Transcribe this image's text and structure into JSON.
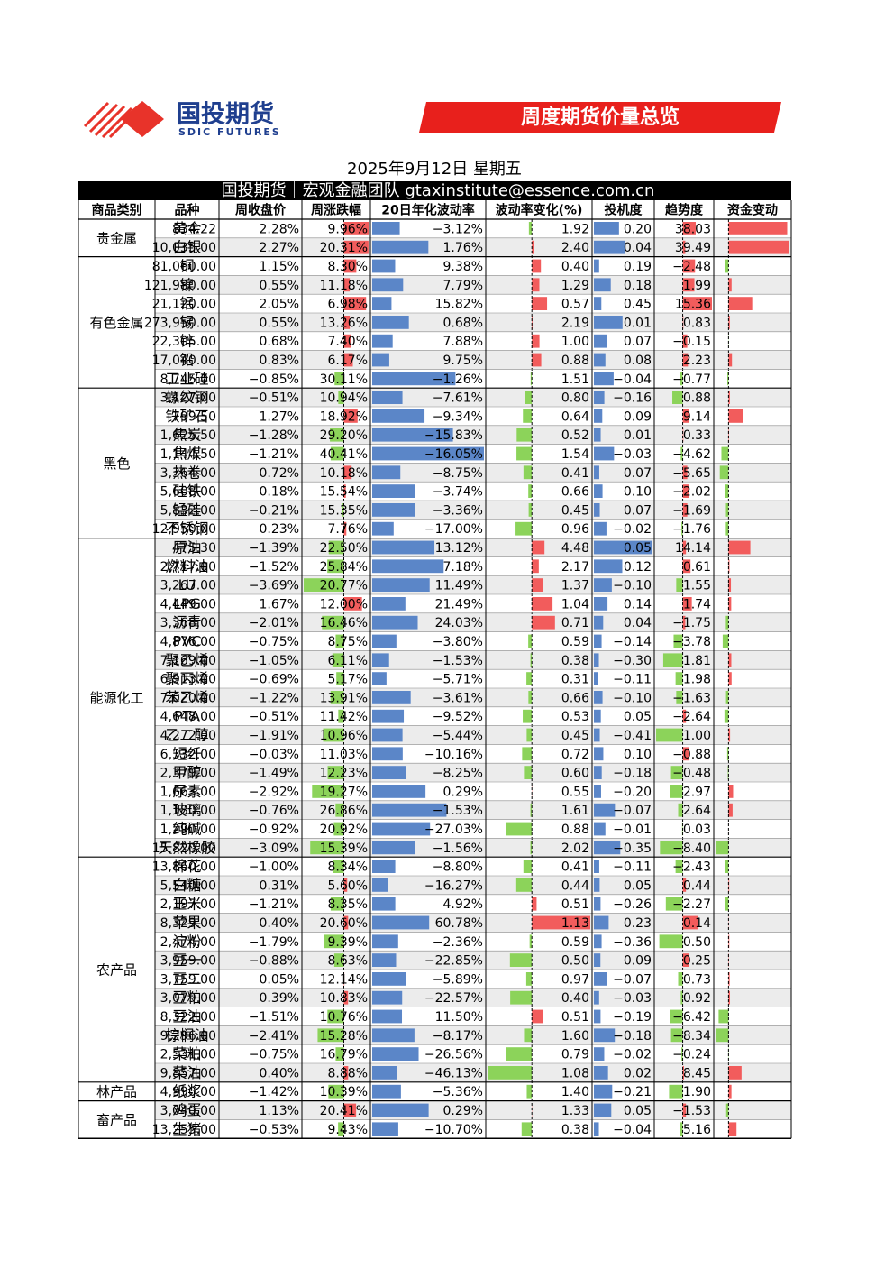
{
  "header": {
    "logo_cn": "国投期货",
    "logo_en": "SDIC FUTURES",
    "banner": "周度期货价量总览",
    "date": "2025年9月12日 星期五",
    "subtitle": "国投期货｜宏观金融团队 gtaxinstitute@essence.com.cn"
  },
  "table": {
    "columns": [
      "商品类别",
      "品种",
      "周收盘价",
      "周涨跌幅",
      "20日年化波动率",
      "波动率变化(%)",
      "投机度",
      "趋势度",
      "资金变动"
    ],
    "groups": [
      {
        "name": "贵金属",
        "rows": [
          [
            "黄金",
            "834.22",
            "2.28%",
            "9.96%",
            "−3.12%",
            "1.92",
            "0.20",
            "38.03"
          ],
          [
            "白银",
            "10,035.00",
            "2.27%",
            "20.31%",
            "1.76%",
            "2.40",
            "0.04",
            "39.49"
          ]
        ]
      },
      {
        "name": "有色金属",
        "rows": [
          [
            "铜",
            "81,060.00",
            "1.15%",
            "8.30%",
            "9.38%",
            "0.40",
            "0.19",
            "−2.48"
          ],
          [
            "镍",
            "121,980.00",
            "0.55%",
            "11.18%",
            "7.79%",
            "1.29",
            "0.18",
            "1.99"
          ],
          [
            "铝",
            "21,120.00",
            "2.05%",
            "6.98%",
            "15.82%",
            "0.57",
            "0.45",
            "15.36"
          ],
          [
            "锡",
            "273,950.00",
            "0.55%",
            "13.26%",
            "0.68%",
            "2.19",
            "0.01",
            "0.83"
          ],
          [
            "锌",
            "22,305.00",
            "0.68%",
            "7.40%",
            "7.88%",
            "1.00",
            "0.07",
            "−0.15"
          ],
          [
            "铅",
            "17,040.00",
            "0.83%",
            "6.17%",
            "9.75%",
            "0.88",
            "0.08",
            "2.23"
          ],
          [
            "工业硅",
            "8,745.00",
            "−0.85%",
            "30.11%",
            "−1.26%",
            "1.51",
            "−0.04",
            "−0.77"
          ]
        ]
      },
      {
        "name": "黑色",
        "rows": [
          [
            "螺纹钢",
            "3,127.00",
            "−0.51%",
            "10.94%",
            "−7.61%",
            "0.80",
            "−0.16",
            "0.88"
          ],
          [
            "铁矿石",
            "799.50",
            "1.27%",
            "18.92%",
            "−9.34%",
            "0.64",
            "0.09",
            "9.14"
          ],
          [
            "焦炭",
            "1,625.50",
            "−1.28%",
            "29.20%",
            "−15.83%",
            "0.52",
            "0.01",
            "0.33"
          ],
          [
            "焦煤",
            "1,144.50",
            "−1.21%",
            "40.41%",
            "−16.05%",
            "1.54",
            "−0.03",
            "−4.62"
          ],
          [
            "热卷",
            "3,364.00",
            "0.72%",
            "10.18%",
            "−8.75%",
            "0.41",
            "0.07",
            "−5.65"
          ],
          [
            "硅铁",
            "5,608.00",
            "0.18%",
            "15.54%",
            "−3.74%",
            "0.66",
            "0.10",
            "−2.02"
          ],
          [
            "锰硅",
            "5,832.00",
            "−0.21%",
            "15.35%",
            "−3.36%",
            "0.45",
            "0.07",
            "−1.69"
          ],
          [
            "不锈钢",
            "12,950.00",
            "0.23%",
            "7.76%",
            "−17.00%",
            "0.96",
            "−0.02",
            "−1.76"
          ]
        ]
      },
      {
        "name": "能源化工",
        "rows": [
          [
            "原油",
            "475.30",
            "−1.39%",
            "22.50%",
            "13.12%",
            "4.48",
            "0.05",
            "14.14"
          ],
          [
            "燃料油",
            "2,717.00",
            "−1.52%",
            "25.84%",
            "7.18%",
            "2.17",
            "0.12",
            "0.61"
          ],
          [
            "LU",
            "3,267.00",
            "−3.69%",
            "20.77%",
            "11.49%",
            "1.37",
            "−0.10",
            "1.55"
          ],
          [
            "LPG",
            "4,449.00",
            "1.67%",
            "12.00%",
            "21.49%",
            "1.04",
            "0.14",
            "1.74"
          ],
          [
            "沥青",
            "3,368.00",
            "−2.01%",
            "16.46%",
            "24.03%",
            "0.71",
            "0.04",
            "−1.75"
          ],
          [
            "PVC",
            "4,876.00",
            "−0.75%",
            "8.75%",
            "−3.80%",
            "0.59",
            "−0.14",
            "−3.78"
          ],
          [
            "聚乙烯",
            "7,169.00",
            "−1.05%",
            "6.11%",
            "−1.53%",
            "0.38",
            "−0.30",
            "1.81"
          ],
          [
            "聚丙烯",
            "6,913.00",
            "−0.69%",
            "5.17%",
            "−5.71%",
            "0.31",
            "−0.11",
            "1.98"
          ],
          [
            "苯乙烯",
            "7,020.00",
            "−1.22%",
            "13.91%",
            "−3.61%",
            "0.66",
            "−0.10",
            "−1.63"
          ],
          [
            "PTA",
            "4,648.00",
            "−0.51%",
            "11.42%",
            "−9.52%",
            "0.53",
            "0.05",
            "−2.64"
          ],
          [
            "乙二醇",
            "4,272.00",
            "−1.91%",
            "10.96%",
            "−5.44%",
            "0.45",
            "−0.41",
            "1.00"
          ],
          [
            "短纤",
            "6,332.00",
            "−0.03%",
            "11.03%",
            "−10.16%",
            "0.72",
            "0.10",
            "−0.88"
          ],
          [
            "甲醇",
            "2,379.00",
            "−1.49%",
            "12.23%",
            "−8.25%",
            "0.60",
            "−0.18",
            "−0.48"
          ],
          [
            "尿素",
            "1,663.00",
            "−2.92%",
            "19.27%",
            "0.29%",
            "0.55",
            "−0.20",
            "2.97"
          ],
          [
            "玻璃",
            "1,180.00",
            "−0.76%",
            "26.86%",
            "−1.53%",
            "1.61",
            "−0.07",
            "2.64"
          ],
          [
            "纯碱",
            "1,290.00",
            "−0.92%",
            "20.92%",
            "−27.03%",
            "0.88",
            "−0.01",
            "0.03"
          ],
          [
            "天然橡胶",
            "15,820.00",
            "−3.09%",
            "15.39%",
            "−1.56%",
            "2.02",
            "−0.35",
            "−8.40"
          ]
        ]
      },
      {
        "name": "农产品",
        "rows": [
          [
            "棉花",
            "13,860.00",
            "−1.00%",
            "8.34%",
            "−8.80%",
            "0.41",
            "−0.11",
            "−2.43"
          ],
          [
            "白糖",
            "5,540.00",
            "0.31%",
            "5.60%",
            "−16.27%",
            "0.44",
            "0.05",
            "0.44"
          ],
          [
            "玉米",
            "2,197.00",
            "−1.21%",
            "8.35%",
            "4.92%",
            "0.51",
            "−0.26",
            "−2.27"
          ],
          [
            "苹果",
            "8,329.00",
            "0.40%",
            "20.60%",
            "60.78%",
            "1.13",
            "0.23",
            "0.14"
          ],
          [
            "淀粉",
            "2,474.00",
            "−1.79%",
            "9.39%",
            "−2.36%",
            "0.59",
            "−0.36",
            "0.50"
          ],
          [
            "豆一",
            "3,959.00",
            "−0.88%",
            "8.63%",
            "−22.85%",
            "0.50",
            "0.09",
            "0.25"
          ],
          [
            "豆二",
            "3,759.00",
            "0.05%",
            "12.14%",
            "−5.89%",
            "0.97",
            "−0.07",
            "0.73"
          ],
          [
            "豆粕",
            "3,079.00",
            "0.39%",
            "10.83%",
            "−22.57%",
            "0.40",
            "−0.03",
            "0.92"
          ],
          [
            "豆油",
            "8,322.00",
            "−1.51%",
            "10.76%",
            "11.50%",
            "0.51",
            "−0.19",
            "−6.42"
          ],
          [
            "棕榈油",
            "9,296.00",
            "−2.41%",
            "15.28%",
            "−8.17%",
            "1.60",
            "−0.18",
            "−8.34"
          ],
          [
            "菜粕",
            "2,531.00",
            "−0.75%",
            "16.79%",
            "−26.56%",
            "0.79",
            "−0.02",
            "−0.24"
          ],
          [
            "菜油",
            "9,857.00",
            "0.40%",
            "8.88%",
            "−46.13%",
            "1.08",
            "0.02",
            "8.45"
          ]
        ]
      },
      {
        "name": "林产品",
        "rows": [
          [
            "纸浆",
            "4,990.00",
            "−1.42%",
            "10.39%",
            "−5.36%",
            "1.40",
            "−0.21",
            "1.90"
          ]
        ]
      },
      {
        "name": "畜产品",
        "rows": [
          [
            "鸡蛋",
            "3,040.00",
            "1.13%",
            "20.41%",
            "0.29%",
            "1.33",
            "0.05",
            "−1.53"
          ],
          [
            "生猪",
            "13,255.00",
            "−0.53%",
            "9.43%",
            "−10.70%",
            "0.38",
            "−0.04",
            "5.16"
          ]
        ]
      }
    ]
  }
}
